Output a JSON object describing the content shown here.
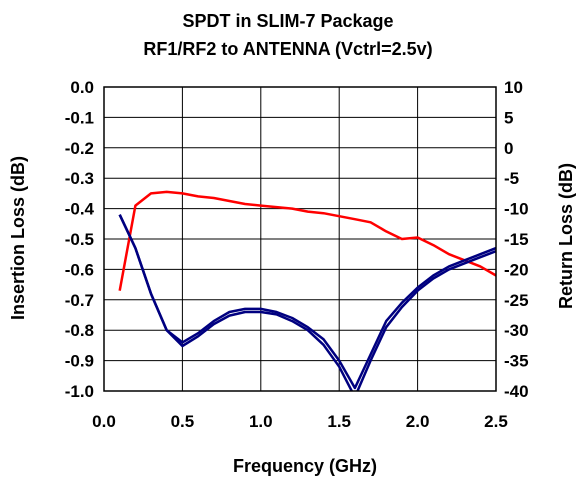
{
  "chart_data": {
    "type": "line",
    "title": [
      "SPDT in SLIM-7 Package",
      "RF1/RF2 to ANTENNA (Vctrl=2.5v)"
    ],
    "xlabel": "Frequency (GHz)",
    "ylabel_left": "Insertion Loss (dB)",
    "ylabel_right": "Return Loss (dB)",
    "xlim": [
      0.0,
      2.5
    ],
    "ylim_left": [
      -1.0,
      0.0
    ],
    "ylim_right": [
      -40,
      10
    ],
    "x_ticks": [
      "0.0",
      "0.5",
      "1.0",
      "1.5",
      "2.0",
      "2.5"
    ],
    "y_ticks_left": [
      "0.0",
      "-0.1",
      "-0.2",
      "-0.3",
      "-0.4",
      "-0.5",
      "-0.6",
      "-0.7",
      "-0.8",
      "-0.9",
      "-1.0"
    ],
    "y_ticks_right": [
      "10",
      "5",
      "0",
      "-5",
      "-10",
      "-15",
      "-20",
      "-25",
      "-30",
      "-35",
      "-40"
    ],
    "grid": true,
    "colors": {
      "insertion_loss": "#ff0000",
      "return_loss": "#000080"
    },
    "series": [
      {
        "axis": "left",
        "color": "#ff0000",
        "x": [
          0.1,
          0.2,
          0.3,
          0.4,
          0.5,
          0.6,
          0.7,
          0.8,
          0.9,
          1.0,
          1.1,
          1.2,
          1.3,
          1.4,
          1.5,
          1.6,
          1.7,
          1.8,
          1.9,
          2.0,
          2.1,
          2.2,
          2.3,
          2.4,
          2.5
        ],
        "y": [
          -0.67,
          -0.39,
          -0.35,
          -0.345,
          -0.35,
          -0.36,
          -0.365,
          -0.375,
          -0.385,
          -0.39,
          -0.395,
          -0.4,
          -0.41,
          -0.415,
          -0.425,
          -0.435,
          -0.445,
          -0.475,
          -0.5,
          -0.495,
          -0.52,
          -0.55,
          -0.57,
          -0.59,
          -0.62
        ]
      },
      {
        "axis": "right",
        "color": "#000080",
        "x": [
          0.1,
          0.2,
          0.3,
          0.4,
          0.5,
          0.6,
          0.7,
          0.8,
          0.9,
          1.0,
          1.1,
          1.2,
          1.3,
          1.4,
          1.5,
          1.6,
          1.7,
          1.8,
          1.9,
          2.0,
          2.1,
          2.2,
          2.3,
          2.4,
          2.5
        ],
        "y": [
          -11,
          -16.5,
          -24,
          -30,
          -32,
          -30.5,
          -28.5,
          -27,
          -26.5,
          -26.5,
          -27,
          -28,
          -29.5,
          -31.5,
          -35,
          -39.5,
          -34,
          -28.5,
          -25.5,
          -23,
          -21,
          -19.5,
          -18.5,
          -17.5,
          -16.5
        ]
      },
      {
        "axis": "right",
        "color": "#000080",
        "x": [
          0.1,
          0.2,
          0.3,
          0.4,
          0.5,
          0.6,
          0.7,
          0.8,
          0.9,
          1.0,
          1.1,
          1.2,
          1.3,
          1.4,
          1.5,
          1.6,
          1.7,
          1.8,
          1.9,
          2.0,
          2.1,
          2.2,
          2.3,
          2.4,
          2.5
        ],
        "y": [
          -11,
          -16.5,
          -24,
          -30,
          -32.6,
          -31,
          -29,
          -27.6,
          -27,
          -27,
          -27.4,
          -28.5,
          -30,
          -32.4,
          -36,
          -41,
          -35,
          -29.5,
          -26.2,
          -23.5,
          -21.5,
          -20,
          -19,
          -18,
          -17
        ]
      }
    ]
  }
}
